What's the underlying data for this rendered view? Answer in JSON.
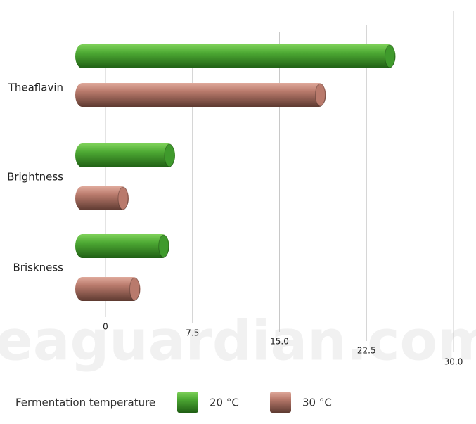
{
  "chart_data": {
    "type": "bar",
    "orientation": "horizontal",
    "categories": [
      "Theaflavin",
      "Brightness",
      "Briskness"
    ],
    "series": [
      {
        "name": "20 °C",
        "color": "#3f9a2c",
        "values": [
          25,
          6,
          5.5
        ]
      },
      {
        "name": "30 °C",
        "color": "#b97a6c",
        "values": [
          19,
          2,
          3
        ]
      }
    ],
    "xlim": [
      0,
      30
    ],
    "xticks": [
      0,
      7.5,
      {
        "value": 15,
        "label": "15.0"
      },
      22.5,
      {
        "value": 30,
        "label": "30.0"
      }
    ],
    "grid": true,
    "legend_title": "Fermentation temperature",
    "legend": "bottom",
    "watermark": "teaguardian.com"
  }
}
